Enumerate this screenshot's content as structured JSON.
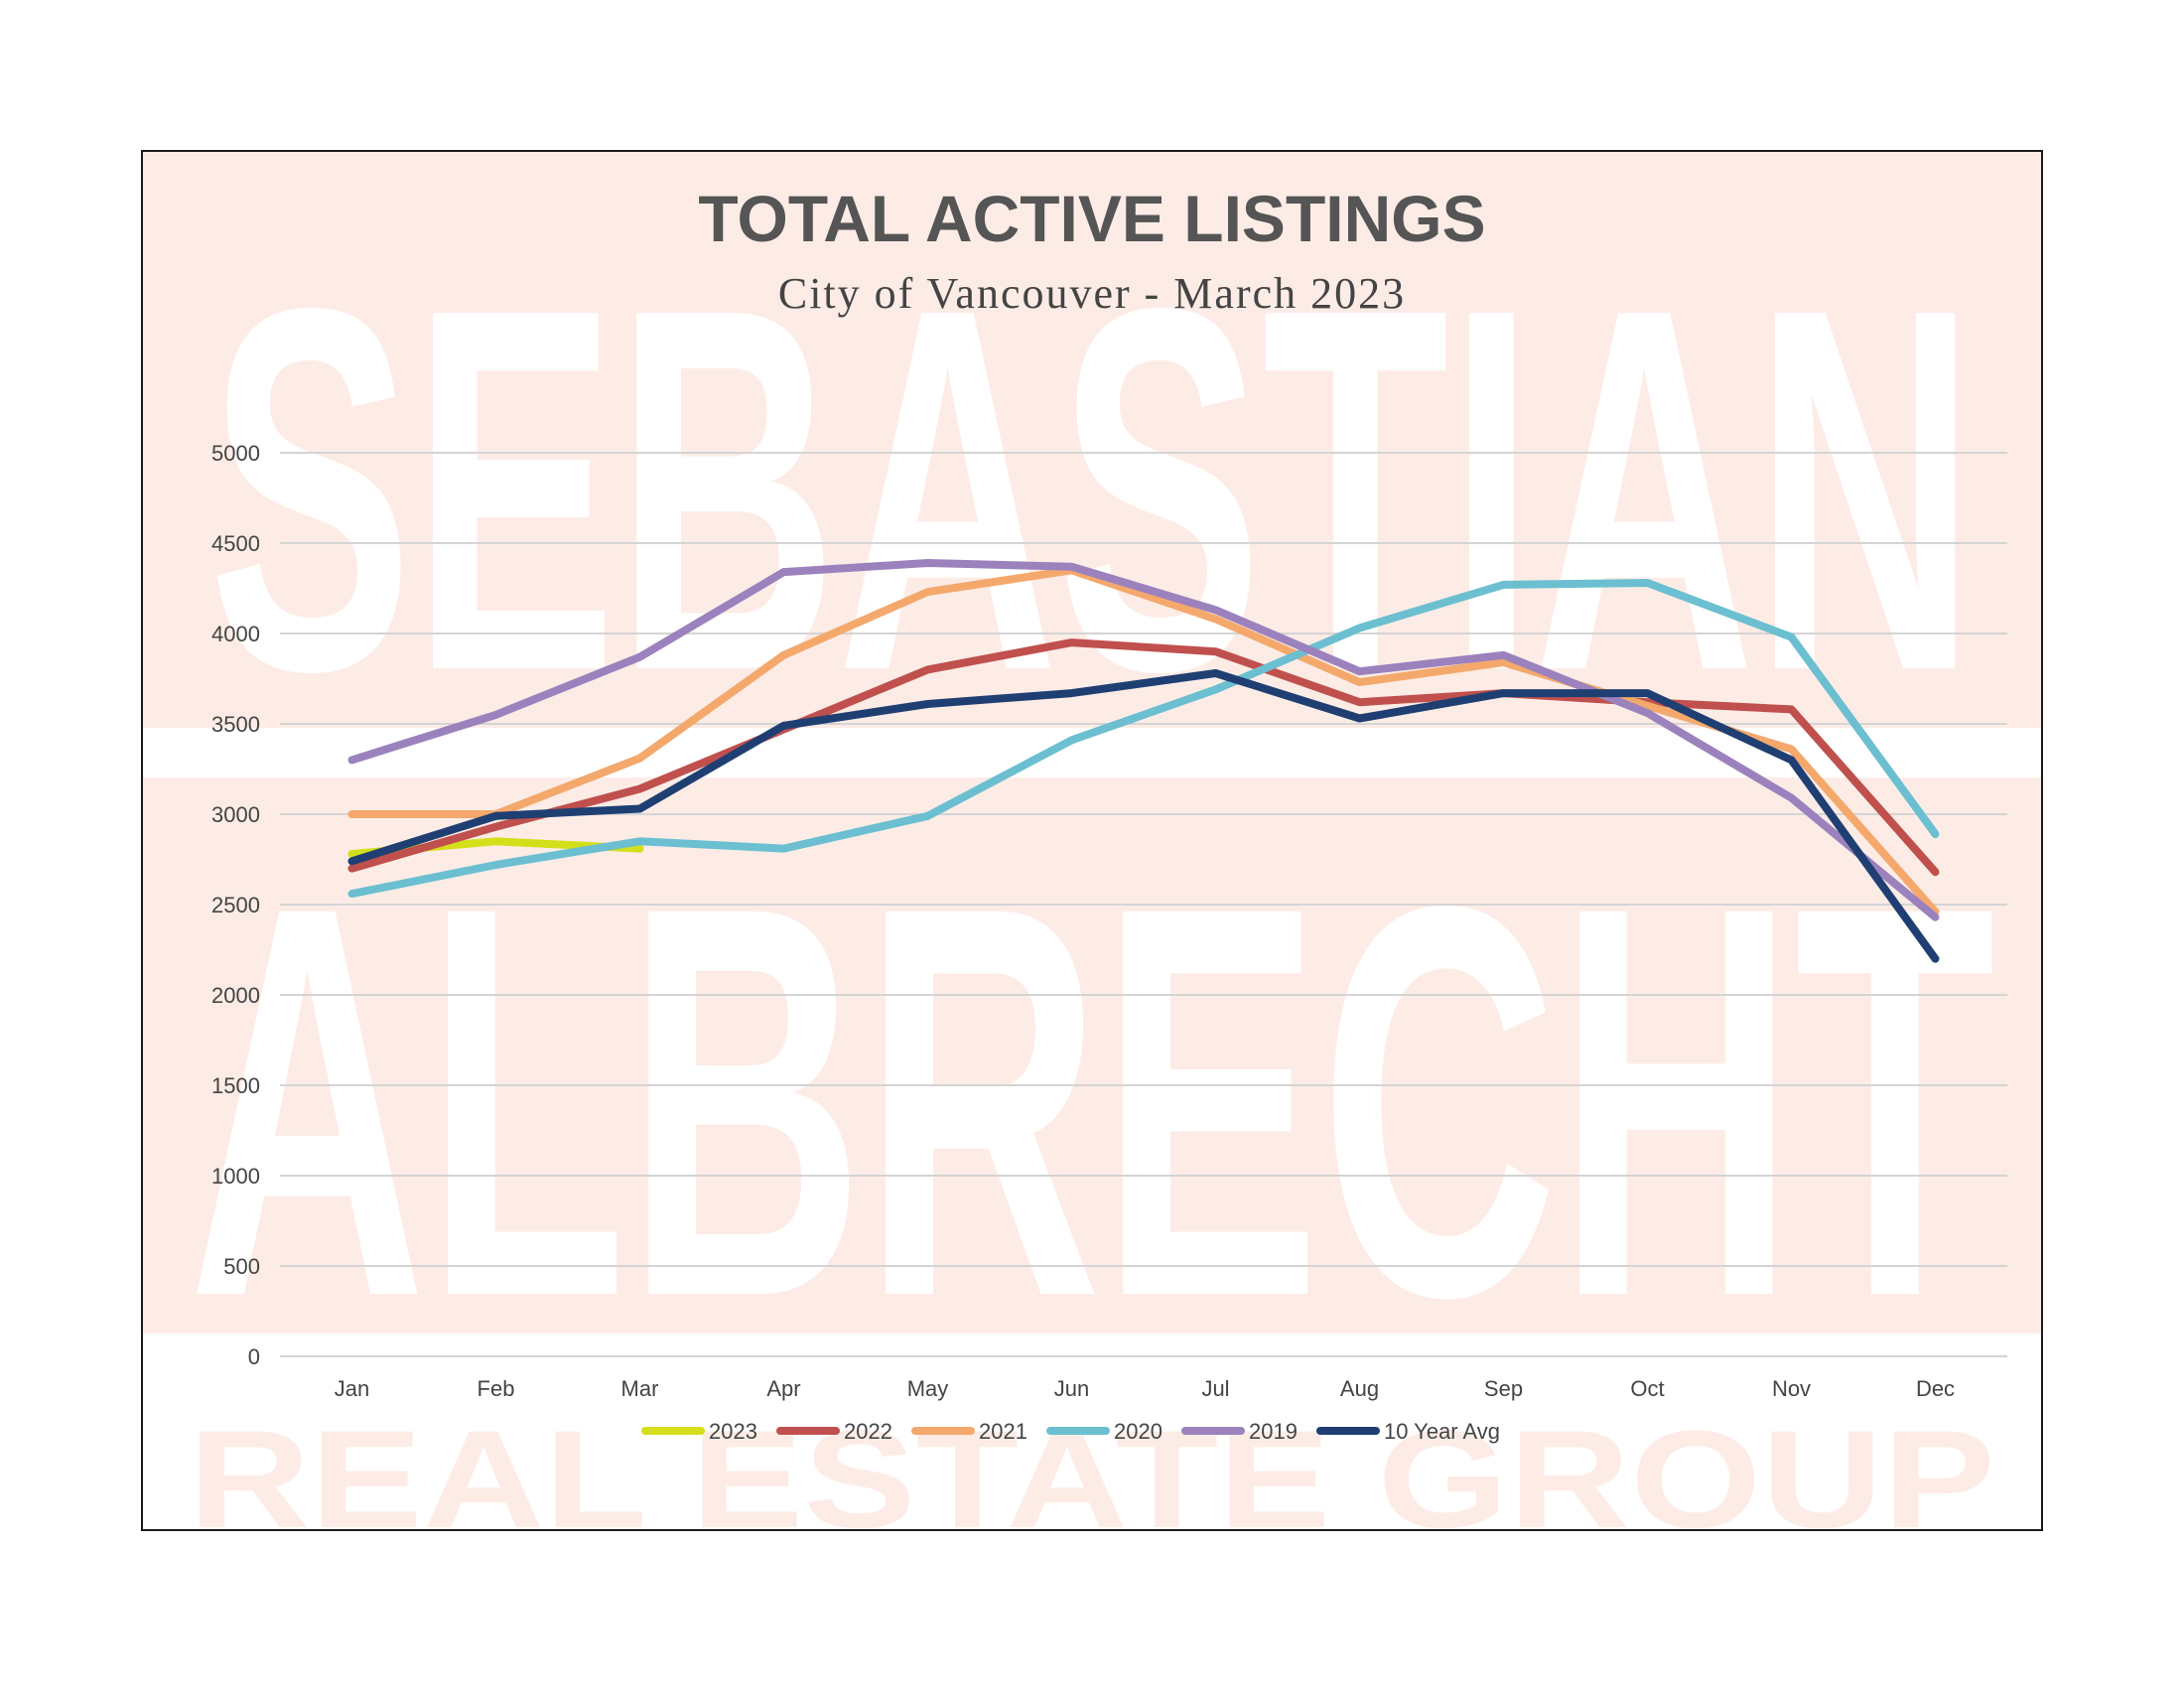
{
  "watermark": {
    "line1": "SEBASTIAN",
    "line2": "ALBRECHT",
    "line3": "REAL ESTATE GROUP"
  },
  "chart_data": {
    "type": "line",
    "title": "TOTAL ACTIVE LISTINGS",
    "subtitle": "City of Vancouver - March 2023",
    "xlabel": "",
    "ylabel": "",
    "categories": [
      "Jan",
      "Feb",
      "Mar",
      "Apr",
      "May",
      "Jun",
      "Jul",
      "Aug",
      "Sep",
      "Oct",
      "Nov",
      "Dec"
    ],
    "ylim": [
      0,
      5000
    ],
    "yticks": [
      0,
      500,
      1000,
      1500,
      2000,
      2500,
      3000,
      3500,
      4000,
      4500,
      5000
    ],
    "grid": true,
    "legend_position": "bottom",
    "series": [
      {
        "name": "2023",
        "color": "#d4de1a",
        "values": [
          2780,
          2850,
          2810,
          null,
          null,
          null,
          null,
          null,
          null,
          null,
          null,
          null
        ]
      },
      {
        "name": "2022",
        "color": "#c0504d",
        "values": [
          2700,
          2930,
          3140,
          3470,
          3800,
          3950,
          3900,
          3620,
          3670,
          3620,
          3580,
          2680
        ]
      },
      {
        "name": "2021",
        "color": "#f4a86c",
        "values": [
          3000,
          3000,
          3310,
          3880,
          4230,
          4350,
          4080,
          3730,
          3840,
          3600,
          3360,
          2460
        ]
      },
      {
        "name": "2020",
        "color": "#6bbfd0",
        "values": [
          2560,
          2720,
          2850,
          2810,
          2990,
          3410,
          3690,
          4030,
          4270,
          4280,
          3980,
          2890
        ]
      },
      {
        "name": "2019",
        "color": "#9b82bd",
        "values": [
          3300,
          3550,
          3870,
          4340,
          4390,
          4370,
          4130,
          3790,
          3880,
          3560,
          3090,
          2430
        ]
      },
      {
        "name": "10 Year Avg",
        "color": "#1f3f73",
        "values": [
          2740,
          2990,
          3030,
          3490,
          3610,
          3670,
          3780,
          3530,
          3670,
          3670,
          3300,
          2200
        ]
      }
    ]
  }
}
